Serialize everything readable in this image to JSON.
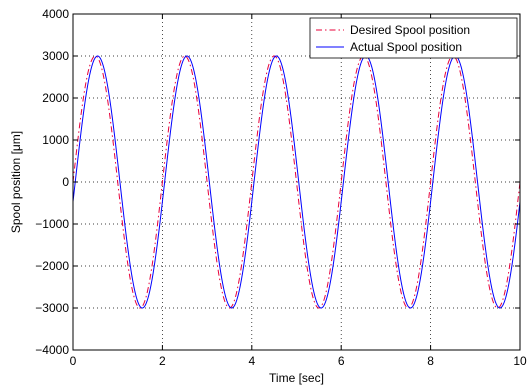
{
  "chart_data": {
    "type": "line",
    "title": "",
    "xlabel": "Time [sec]",
    "ylabel": "Spool position [μm]",
    "xlim": [
      0,
      10
    ],
    "ylim": [
      -4000,
      4000
    ],
    "xticks": [
      0,
      2,
      4,
      6,
      8,
      10
    ],
    "yticks": [
      -4000,
      -3000,
      -2000,
      -1000,
      0,
      1000,
      2000,
      3000,
      4000
    ],
    "xtick_labels": [
      "0",
      "2",
      "4",
      "6",
      "8",
      "10"
    ],
    "ytick_labels": [
      "−4000",
      "−3000",
      "−2000",
      "−1000",
      "0",
      "1000",
      "2000",
      "3000",
      "4000"
    ],
    "grid": true,
    "legend_position": "top-right",
    "series": [
      {
        "name": "Desired Spool position",
        "color": "#e8003a",
        "line_style": "dash-dot",
        "function": "sine",
        "amplitude": 3000,
        "frequency_hz": 0.5,
        "offset": 0
      },
      {
        "name": "Actual Spool position",
        "color": "#0000ff",
        "line_style": "solid",
        "function": "sine",
        "amplitude": 3000,
        "frequency_hz": 0.5,
        "offset": 0,
        "lag_sec": 0.05
      }
    ]
  }
}
